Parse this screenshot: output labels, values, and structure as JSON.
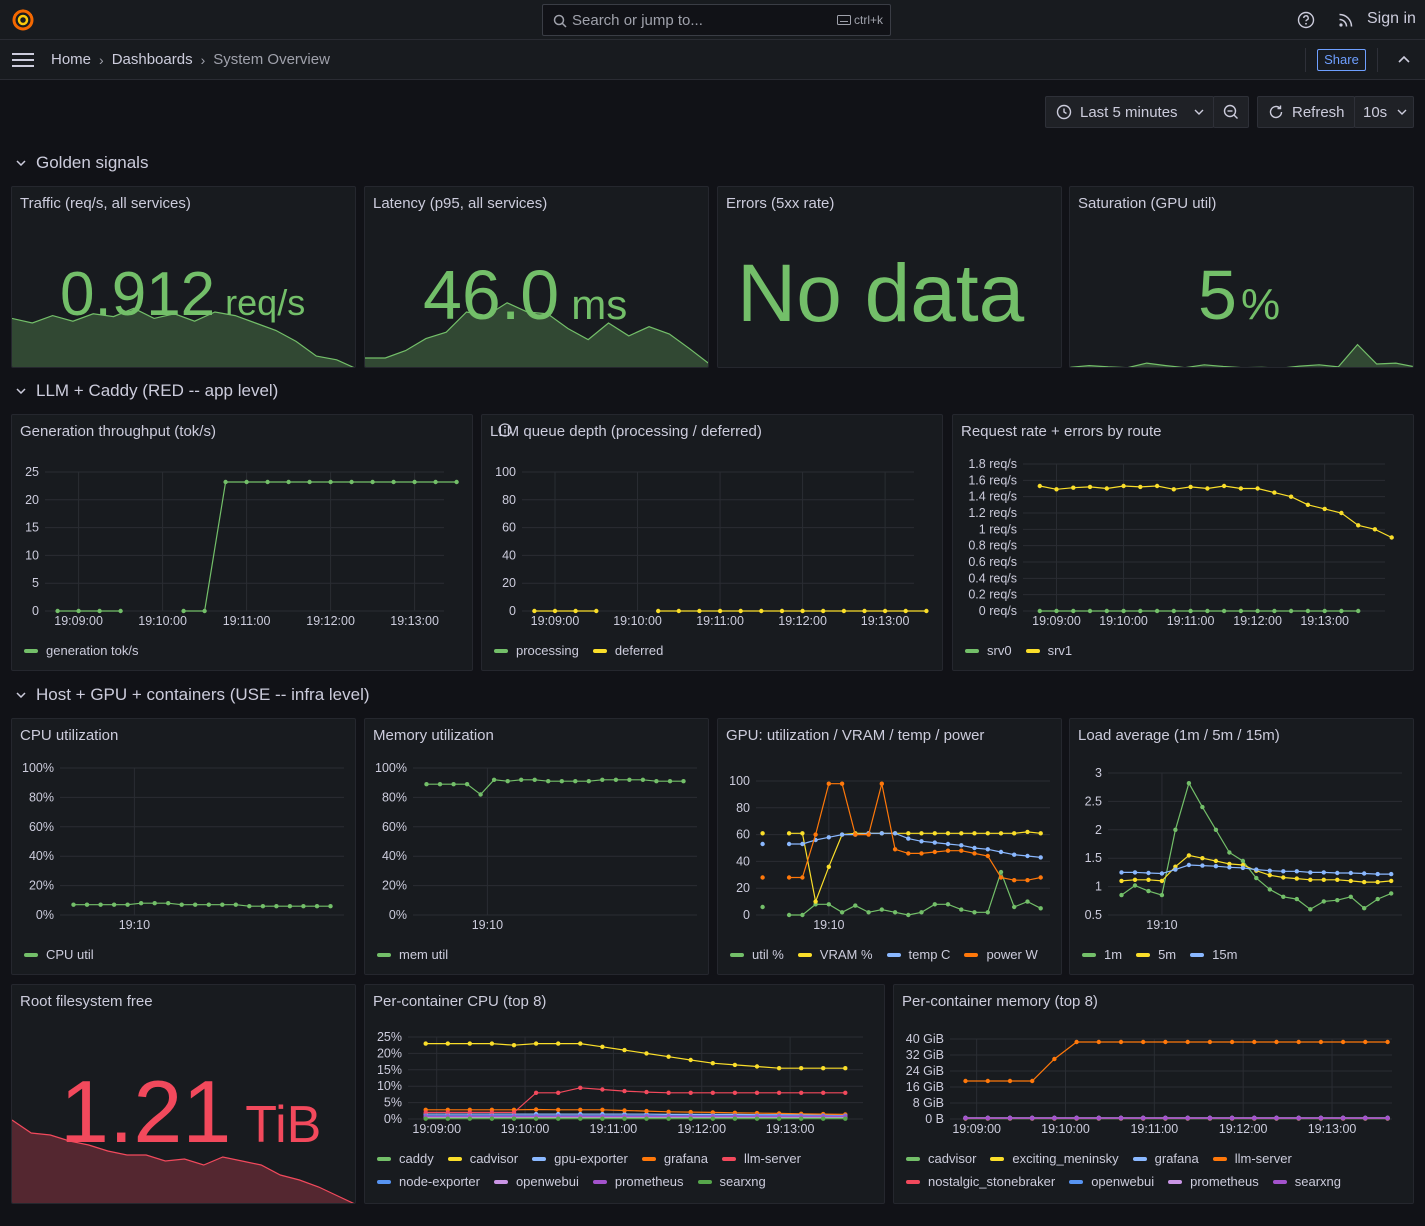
{
  "topbar": {
    "search_placeholder": "Search or jump to...",
    "search_shortcut": "ctrl+k",
    "sign_in": "Sign in"
  },
  "breadcrumb": [
    "Home",
    "Dashboards",
    "System Overview"
  ],
  "nav": {
    "share": "Share"
  },
  "toolbar": {
    "time_range": "Last 5 minutes",
    "refresh": "Refresh",
    "interval": "10s"
  },
  "colors": {
    "green": "#73bf69",
    "yellow": "#fade2a",
    "blue": "#8ab8ff",
    "orange": "#ff780a",
    "red": "#f2495c",
    "purple": "#a352cc",
    "light_purple": "#ca95e5",
    "dark_green": "#56a64b",
    "dark_blue": "#5794f2"
  },
  "rows": {
    "golden": "Golden signals",
    "red": "LLM + Caddy (RED -- app level)",
    "use": "Host + GPU + containers (USE -- infra level)"
  },
  "stats": {
    "traffic": {
      "title": "Traffic (req/s, all services)",
      "value": "0.912",
      "unit": "req/s",
      "spark": [
        0.55,
        0.5,
        0.58,
        0.52,
        0.6,
        0.57,
        0.66,
        0.55,
        0.6,
        0.52,
        0.62,
        0.58,
        0.5,
        0.42,
        0.3,
        0.14,
        0.1,
        0
      ]
    },
    "latency": {
      "title": "Latency (p95, all services)",
      "value": "46.0",
      "unit": "ms",
      "spark": [
        0.12,
        0.12,
        0.2,
        0.33,
        0.4,
        0.62,
        0.58,
        0.72,
        0.62,
        0.6,
        0.44,
        0.32,
        0.5,
        0.36,
        0.46,
        0.38,
        0.22,
        0.05
      ]
    },
    "errors": {
      "title": "Errors (5xx rate)",
      "value": "No data"
    },
    "saturation": {
      "title": "Saturation (GPU util)",
      "value": "5",
      "unit": "%",
      "spark": [
        0.04,
        0.08,
        0.05,
        0.03,
        0.14,
        0.08,
        0.03,
        0.1,
        0.06,
        0.03,
        0.04,
        0.02,
        0.07,
        0.1,
        0.05,
        0.58,
        0.12,
        0.14,
        0.05
      ]
    },
    "rootfs": {
      "title": "Root filesystem free",
      "value": "1.21",
      "unit": "TiB",
      "spark": [
        0.85,
        0.72,
        0.7,
        0.64,
        0.6,
        0.54,
        0.5,
        0.5,
        0.44,
        0.46,
        0.4,
        0.48,
        0.44,
        0.4,
        0.3,
        0.25,
        0.18,
        0.09,
        0
      ]
    }
  },
  "chart_data": [
    {
      "id": "throughput",
      "type": "line",
      "title": "Generation throughput (tok/s)",
      "x_ticks": [
        "19:09:00",
        "19:10:00",
        "19:11:00",
        "19:12:00",
        "19:13:00"
      ],
      "ylim": [
        0,
        25
      ],
      "y_ticks": [
        "0",
        "5",
        "10",
        "15",
        "20",
        "25"
      ],
      "series": [
        {
          "name": "generation tok/s",
          "color": "#73bf69",
          "values": [
            0,
            0,
            0,
            0,
            null,
            null,
            0,
            0,
            23.2,
            23.2,
            23.2,
            23.2,
            23.2,
            23.2,
            23.2,
            23.2,
            23.2,
            23.2,
            23.2,
            23.2
          ]
        }
      ]
    },
    {
      "id": "queue",
      "type": "line",
      "title": "LLM queue depth (processing / deferred)",
      "x_ticks": [
        "19:09:00",
        "19:10:00",
        "19:11:00",
        "19:12:00",
        "19:13:00"
      ],
      "ylim": [
        0,
        100
      ],
      "y_ticks": [
        "0",
        "20",
        "40",
        "60",
        "80",
        "100"
      ],
      "series": [
        {
          "name": "processing",
          "color": "#73bf69",
          "values": []
        },
        {
          "name": "deferred",
          "color": "#fade2a",
          "values": [
            0,
            0,
            0,
            0,
            null,
            null,
            0,
            0,
            0,
            0,
            0,
            0,
            0,
            0,
            0,
            0,
            0,
            0,
            0,
            0
          ]
        }
      ]
    },
    {
      "id": "reqrate",
      "type": "line",
      "title": "Request rate + errors by route",
      "x_ticks": [
        "19:09:00",
        "19:10:00",
        "19:11:00",
        "19:12:00",
        "19:13:00"
      ],
      "ylim": [
        0,
        1.8
      ],
      "y_ticks": [
        "0 req/s",
        "0.2 req/s",
        "0.4 req/s",
        "0.6 req/s",
        "0.8 req/s",
        "1 req/s",
        "1.2 req/s",
        "1.4 req/s",
        "1.6 req/s",
        "1.8 req/s"
      ],
      "series": [
        {
          "name": "srv0",
          "color": "#73bf69",
          "values": [
            0,
            0,
            0,
            0,
            0,
            0,
            0,
            0,
            0,
            0,
            0,
            0,
            0,
            0,
            0,
            0,
            0,
            0,
            0,
            0
          ]
        },
        {
          "name": "srv1",
          "color": "#fade2a",
          "values": [
            1.53,
            1.49,
            1.51,
            1.52,
            1.5,
            1.53,
            1.52,
            1.53,
            1.49,
            1.52,
            1.5,
            1.53,
            1.5,
            1.5,
            1.45,
            1.4,
            1.3,
            1.25,
            1.2,
            1.05,
            1.0,
            0.9
          ]
        }
      ]
    },
    {
      "id": "cpu",
      "type": "line",
      "title": "CPU utilization",
      "x_ticks": [
        "19:10"
      ],
      "ylim": [
        0,
        100
      ],
      "y_ticks": [
        "0%",
        "20%",
        "40%",
        "60%",
        "80%",
        "100%"
      ],
      "series": [
        {
          "name": "CPU util",
          "color": "#73bf69",
          "values": [
            7,
            7,
            7,
            7,
            7,
            8,
            8,
            8,
            7,
            7,
            7,
            7,
            7,
            6,
            6,
            6,
            6,
            6,
            6,
            6
          ]
        }
      ]
    },
    {
      "id": "mem",
      "type": "line",
      "title": "Memory utilization",
      "x_ticks": [
        "19:10"
      ],
      "ylim": [
        0,
        100
      ],
      "y_ticks": [
        "0%",
        "20%",
        "40%",
        "60%",
        "80%",
        "100%"
      ],
      "series": [
        {
          "name": "mem util",
          "color": "#73bf69",
          "values": [
            89,
            89,
            89,
            89,
            82,
            92,
            91,
            92,
            92,
            91,
            91,
            91,
            91,
            92,
            92,
            92,
            92,
            91,
            91,
            91
          ]
        }
      ]
    },
    {
      "id": "gpu",
      "type": "line",
      "title": "GPU: utilization / VRAM / temp / power",
      "x_ticks": [
        "19:10"
      ],
      "ylim": [
        0,
        100
      ],
      "y_ticks": [
        "0",
        "20",
        "40",
        "60",
        "80",
        "100"
      ],
      "series": [
        {
          "name": "util %",
          "color": "#73bf69",
          "values": [
            6,
            null,
            0,
            0,
            8,
            8,
            2,
            7,
            2,
            4,
            2,
            0,
            2,
            8,
            8,
            4,
            2,
            2,
            32,
            6,
            10,
            5
          ]
        },
        {
          "name": "VRAM %",
          "color": "#fade2a",
          "values": [
            61,
            null,
            61,
            61,
            10,
            36,
            60,
            61,
            61,
            61,
            61,
            61,
            61,
            61,
            61,
            61,
            61,
            61,
            61,
            61,
            62,
            61
          ]
        },
        {
          "name": "temp C",
          "color": "#8ab8ff",
          "values": [
            53,
            null,
            53,
            53,
            56,
            58,
            60,
            60,
            61,
            61,
            61,
            57,
            55,
            54,
            53,
            52,
            50,
            49,
            47,
            45,
            44,
            43
          ]
        },
        {
          "name": "power W",
          "color": "#ff780a",
          "values": [
            28,
            null,
            28,
            28,
            60,
            98,
            98,
            60,
            60,
            98,
            49,
            46,
            46,
            47,
            48,
            48,
            46,
            44,
            28,
            26,
            26,
            28
          ]
        }
      ]
    },
    {
      "id": "load",
      "type": "line",
      "title": "Load average (1m / 5m / 15m)",
      "x_ticks": [
        "19:10"
      ],
      "ylim": [
        0.5,
        3
      ],
      "y_ticks": [
        "0.5",
        "1",
        "1.5",
        "2",
        "2.5",
        "3"
      ],
      "series": [
        {
          "name": "1m",
          "color": "#73bf69",
          "values": [
            0.85,
            1.02,
            0.92,
            0.85,
            2.0,
            2.82,
            2.4,
            2.0,
            1.6,
            1.45,
            1.15,
            0.95,
            0.82,
            0.78,
            0.6,
            0.74,
            0.76,
            0.82,
            0.62,
            0.78,
            0.88
          ]
        },
        {
          "name": "5m",
          "color": "#fade2a",
          "values": [
            1.1,
            1.12,
            1.12,
            1.1,
            1.35,
            1.55,
            1.5,
            1.45,
            1.4,
            1.38,
            1.28,
            1.2,
            1.16,
            1.14,
            1.12,
            1.12,
            1.12,
            1.1,
            1.08,
            1.08,
            1.1
          ]
        },
        {
          "name": "15m",
          "color": "#8ab8ff",
          "values": [
            1.25,
            1.25,
            1.24,
            1.23,
            1.3,
            1.38,
            1.37,
            1.36,
            1.34,
            1.33,
            1.3,
            1.28,
            1.27,
            1.27,
            1.25,
            1.25,
            1.24,
            1.24,
            1.23,
            1.22,
            1.22
          ]
        }
      ]
    },
    {
      "id": "ccpu",
      "type": "line",
      "title": "Per-container CPU (top 8)",
      "x_ticks": [
        "19:09:00",
        "19:10:00",
        "19:11:00",
        "19:12:00",
        "19:13:00"
      ],
      "ylim": [
        0,
        25
      ],
      "y_ticks": [
        "0%",
        "5%",
        "10%",
        "15%",
        "20%",
        "25%"
      ],
      "series": [
        {
          "name": "caddy",
          "color": "#73bf69",
          "values": [
            0.3,
            0.3,
            0.3,
            0.3,
            0.3,
            0.3,
            0.3,
            0.3,
            0.3,
            0.3,
            0.3,
            0.3,
            0.3,
            0.3,
            0.3,
            0.3,
            0.3,
            0.3,
            0.3,
            0.3
          ]
        },
        {
          "name": "cadvisor",
          "color": "#fade2a",
          "values": [
            23,
            23,
            23,
            23,
            22.5,
            23,
            23,
            23,
            22,
            21,
            20,
            19,
            18,
            17,
            16.5,
            16,
            15.5,
            15.5,
            15.5,
            15.5
          ]
        },
        {
          "name": "gpu-exporter",
          "color": "#8ab8ff",
          "values": [
            1.5,
            1.5,
            1.5,
            1.5,
            1.5,
            1.5,
            1.5,
            1.5,
            1.5,
            1.5,
            1.5,
            1.4,
            1.4,
            1.4,
            1.4,
            1.3,
            1.3,
            1.3,
            1.3,
            1.2
          ]
        },
        {
          "name": "grafana",
          "color": "#ff780a",
          "values": [
            2.8,
            2.8,
            2.8,
            2.8,
            2.8,
            2.9,
            2.8,
            2.8,
            2.8,
            2.6,
            2.4,
            2.2,
            2.1,
            2.0,
            1.9,
            1.8,
            1.7,
            1.6,
            1.5,
            1.4
          ]
        },
        {
          "name": "llm-server",
          "color": "#f2495c",
          "values": [
            2,
            2,
            2,
            2,
            2,
            8,
            8,
            9.5,
            9,
            8.5,
            8.2,
            8,
            8,
            8,
            8,
            8,
            8,
            8,
            8,
            8
          ]
        },
        {
          "name": "node-exporter",
          "color": "#5794f2",
          "values": [
            1,
            1,
            1,
            1,
            1,
            1,
            1,
            1,
            1,
            1,
            1,
            1,
            1,
            1,
            1,
            1,
            1,
            1,
            1,
            1
          ]
        },
        {
          "name": "openwebui",
          "color": "#ca95e5",
          "values": [
            0.6,
            0.6,
            0.6,
            0.6,
            0.6,
            0.6,
            0.6,
            0.6,
            0.6,
            0.6,
            0.6,
            0.6,
            0.6,
            0.6,
            0.6,
            0.6,
            0.6,
            0.6,
            0.6,
            0.6
          ]
        },
        {
          "name": "prometheus",
          "color": "#a352cc",
          "values": [
            0.8,
            0.8,
            0.8,
            0.8,
            0.8,
            0.8,
            0.8,
            0.8,
            0.8,
            0.8,
            0.8,
            0.8,
            0.8,
            0.8,
            0.8,
            0.8,
            0.8,
            0.8,
            0.8,
            0.8
          ]
        },
        {
          "name": "searxng",
          "color": "#56a64b",
          "values": [
            0.1,
            0.1,
            0.1,
            0.1,
            0.1,
            0.1,
            0.1,
            0.1,
            0.1,
            0.1,
            0.1,
            0.1,
            0.1,
            0.1,
            0.1,
            0.1,
            0.1,
            0.1,
            0.1,
            0.1
          ]
        }
      ]
    },
    {
      "id": "cmem",
      "type": "line",
      "title": "Per-container memory (top 8)",
      "x_ticks": [
        "19:09:00",
        "19:10:00",
        "19:11:00",
        "19:12:00",
        "19:13:00"
      ],
      "ylim": [
        0,
        40
      ],
      "y_ticks": [
        "0 B",
        "8 GiB",
        "16 GiB",
        "24 GiB",
        "32 GiB",
        "40 GiB"
      ],
      "series": [
        {
          "name": "cadvisor",
          "color": "#73bf69",
          "values": [
            0.2,
            0.2,
            0.2,
            0.2,
            0.2,
            0.2,
            0.2,
            0.2,
            0.2,
            0.2,
            0.2,
            0.2,
            0.2,
            0.2,
            0.2,
            0.2,
            0.2,
            0.2,
            0.2,
            0.2
          ]
        },
        {
          "name": "exciting_meninsky",
          "color": "#fade2a",
          "values": [
            0.3,
            0.3,
            0.3,
            0.3,
            0.3,
            0.3,
            0.3,
            0.3,
            0.3,
            0.3,
            0.3,
            0.3,
            0.3,
            0.3,
            0.3,
            0.3,
            0.3,
            0.3,
            0.3,
            0.3
          ]
        },
        {
          "name": "grafana",
          "color": "#8ab8ff",
          "values": [
            0.4,
            0.4,
            0.4,
            0.4,
            0.4,
            0.4,
            0.4,
            0.4,
            0.4,
            0.4,
            0.4,
            0.4,
            0.4,
            0.4,
            0.4,
            0.4,
            0.4,
            0.4,
            0.4,
            0.4
          ]
        },
        {
          "name": "llm-server",
          "color": "#ff780a",
          "values": [
            19,
            19,
            19,
            19,
            30,
            38.5,
            38.5,
            38.5,
            38.5,
            38.5,
            38.5,
            38.5,
            38.5,
            38.5,
            38.5,
            38.5,
            38.5,
            38.5,
            38.5,
            38.5
          ]
        },
        {
          "name": "nostalgic_stonebraker",
          "color": "#f2495c",
          "values": [
            0.3,
            0.3,
            0.3,
            0.3,
            0.3,
            0.3,
            0.3,
            0.3,
            0.3,
            0.3,
            0.3,
            0.3,
            0.3,
            0.3,
            0.3,
            0.3,
            0.3,
            0.3,
            0.3,
            0.3
          ]
        },
        {
          "name": "openwebui",
          "color": "#5794f2",
          "values": [
            0.5,
            0.5,
            0.5,
            0.5,
            0.5,
            0.5,
            0.5,
            0.5,
            0.5,
            0.5,
            0.5,
            0.5,
            0.5,
            0.5,
            0.5,
            0.5,
            0.5,
            0.5,
            0.5,
            0.5
          ]
        },
        {
          "name": "prometheus",
          "color": "#ca95e5",
          "values": [
            0.6,
            0.6,
            0.6,
            0.6,
            0.6,
            0.6,
            0.6,
            0.6,
            0.6,
            0.6,
            0.6,
            0.6,
            0.6,
            0.6,
            0.6,
            0.6,
            0.6,
            0.6,
            0.6,
            0.6
          ]
        },
        {
          "name": "searxng",
          "color": "#a352cc",
          "values": [
            0.4,
            0.4,
            0.4,
            0.4,
            0.4,
            0.4,
            0.4,
            0.4,
            0.4,
            0.4,
            0.4,
            0.4,
            0.4,
            0.4,
            0.4,
            0.4,
            0.4,
            0.4,
            0.4,
            0.4
          ]
        }
      ]
    }
  ]
}
